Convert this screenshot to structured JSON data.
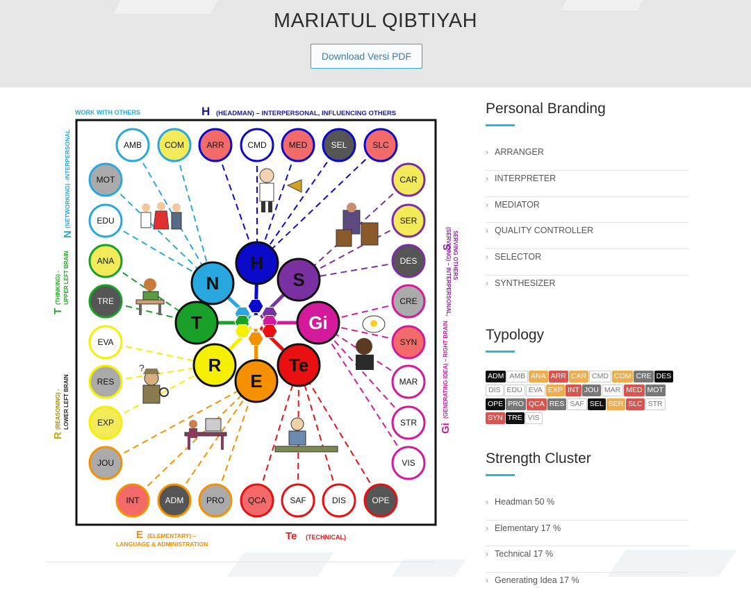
{
  "header": {
    "title": "MARIATUL QIBTIYAH",
    "pdf_button": "Download Versi PDF"
  },
  "diagram": {
    "top_label_h": "H",
    "top_label_text": "(HEADMAN) – INTERPERSONAL, INFLUENCING OTHERS",
    "work_label": "WORK WITH OTHERS",
    "left_n_letter": "N",
    "left_n_text": "(NETWORKING) -INTERPERSONAL",
    "left_t_letter": "T",
    "left_t_text1": "(THINKING) -",
    "left_t_text2": "UPPER LEFT BRAIN",
    "left_r_letter": "R",
    "left_r_text1": "(REASONING) -",
    "left_r_text2": "LOWER LEFT BRAIN",
    "right_s_letter": "S",
    "right_s_text1": "(SERVICING) – INTERPERSONAL,",
    "right_s_text2": "SERVING OTHERS",
    "right_gi_letter": "Gi",
    "right_gi_text": "(GENERATING IDEA) – RIGHT BRAIN",
    "bottom_e_letter": "E",
    "bottom_e_text1": "(ELEMENTARY) –",
    "bottom_e_text2": "LANGUAGE & ADMINISTRATION",
    "bottom_te_letter": "Te",
    "bottom_te_text": "(TECHNICAL)",
    "centers": [
      "N",
      "H",
      "S",
      "T",
      "Gi",
      "R",
      "E",
      "Te"
    ],
    "outer_top": [
      "AMB",
      "COM",
      "ARR",
      "CMD",
      "MED",
      "SEL",
      "SLC"
    ],
    "outer_left": [
      "MOT",
      "EDU",
      "ANA",
      "TRE",
      "EVA",
      "RES",
      "EXP",
      "JOU"
    ],
    "outer_right": [
      "CAR",
      "SER",
      "DES",
      "CRE",
      "SYN",
      "MAR",
      "STR",
      "VIS"
    ],
    "outer_bottom": [
      "INT",
      "ADM",
      "PRO",
      "QCA",
      "SAF",
      "DIS",
      "OPE"
    ]
  },
  "personal_branding": {
    "title": "Personal Branding",
    "items": [
      "ARRANGER",
      "INTERPRETER",
      "MEDIATOR",
      "QUALITY CONTROLLER",
      "SELECTOR",
      "SYNTHESIZER"
    ]
  },
  "typology": {
    "title": "Typology",
    "tags": [
      {
        "label": "ADM",
        "style": "black"
      },
      {
        "label": "AMB",
        "style": "white"
      },
      {
        "label": "ANA",
        "style": "orange"
      },
      {
        "label": "ARR",
        "style": "red"
      },
      {
        "label": "CAR",
        "style": "orange"
      },
      {
        "label": "CMD",
        "style": "white"
      },
      {
        "label": "COM",
        "style": "orange"
      },
      {
        "label": "CRE",
        "style": "gray"
      },
      {
        "label": "DES",
        "style": "black"
      },
      {
        "label": "DIS",
        "style": "white"
      },
      {
        "label": "EDU",
        "style": "white"
      },
      {
        "label": "EVA",
        "style": "white"
      },
      {
        "label": "EXP",
        "style": "orange"
      },
      {
        "label": "INT",
        "style": "red"
      },
      {
        "label": "JOU",
        "style": "gray"
      },
      {
        "label": "MAR",
        "style": "white"
      },
      {
        "label": "MED",
        "style": "red"
      },
      {
        "label": "MOT",
        "style": "gray"
      },
      {
        "label": "OPE",
        "style": "black"
      },
      {
        "label": "PRO",
        "style": "gray"
      },
      {
        "label": "QCA",
        "style": "red"
      },
      {
        "label": "RES",
        "style": "gray"
      },
      {
        "label": "SAF",
        "style": "white"
      },
      {
        "label": "SEL",
        "style": "black"
      },
      {
        "label": "SER",
        "style": "orange"
      },
      {
        "label": "SLC",
        "style": "red"
      },
      {
        "label": "STR",
        "style": "white"
      },
      {
        "label": "SYN",
        "style": "red"
      },
      {
        "label": "TRE",
        "style": "black"
      },
      {
        "label": "VIS",
        "style": "white"
      }
    ]
  },
  "strength_cluster": {
    "title": "Strength Cluster",
    "items": [
      "Headman 50 %",
      "Elementary 17 %",
      "Technical 17 %",
      "Generating Idea 17 %"
    ]
  },
  "colors": {
    "accent": "#29b8dd",
    "button_border": "#29a8d4"
  }
}
